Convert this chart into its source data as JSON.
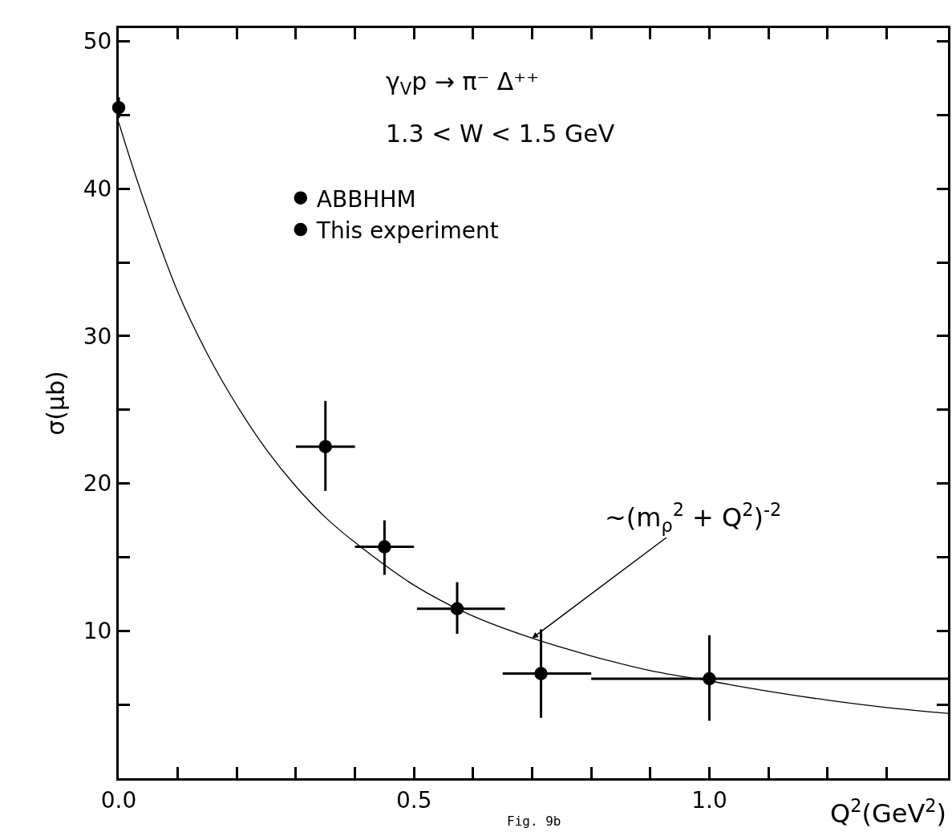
{
  "chart_data": {
    "type": "scatter",
    "title": "γ$_{V}$p → π⁻ Δ⁺⁺",
    "subtitle": "1.3 < W < 1.5 GeV",
    "xlabel": "Q$^{2}$(GeV$^{2}$)",
    "ylabel": "σ(μb)",
    "xlim": [
      0,
      1.404
    ],
    "ylim": [
      0,
      50.9
    ],
    "xticks": [
      {
        "value": 0.0,
        "label": "0.0"
      },
      {
        "value": 0.1,
        "label": null
      },
      {
        "value": 0.2,
        "label": null
      },
      {
        "value": 0.3,
        "label": null
      },
      {
        "value": 0.4,
        "label": null
      },
      {
        "value": 0.5,
        "label": "0.5"
      },
      {
        "value": 0.6,
        "label": null
      },
      {
        "value": 0.7,
        "label": null
      },
      {
        "value": 0.8,
        "label": null
      },
      {
        "value": 0.9,
        "label": null
      },
      {
        "value": 1.0,
        "label": "1.0"
      },
      {
        "value": 1.1,
        "label": null
      },
      {
        "value": 1.2,
        "label": null
      },
      {
        "value": 1.3,
        "label": null
      }
    ],
    "yticks": [
      {
        "value": 5,
        "label": null
      },
      10,
      {
        "value": 15,
        "label": null
      },
      20,
      {
        "value": 25,
        "label": null
      },
      30,
      {
        "value": 35,
        "label": null
      },
      40,
      {
        "value": 45,
        "label": null
      },
      50
    ],
    "legend": "top left",
    "series": [
      {
        "name": "ABBHHM",
        "color": "#000000",
        "marker": "circle",
        "x": [
          0.0
        ],
        "values": [
          45.5
        ],
        "errors": [
          [
            44.8,
            46.2
          ]
        ]
      },
      {
        "name": "This experiment",
        "color": "#000000",
        "marker": "circle",
        "x": [
          0.35,
          0.45,
          0.573,
          0.715,
          1.0
        ],
        "values": [
          22.5,
          15.7,
          11.5,
          7.1,
          6.75
        ],
        "errors": [
          [
            19.5,
            25.6
          ],
          [
            13.8,
            17.5
          ],
          [
            9.8,
            13.3
          ],
          [
            4.1,
            10.1
          ],
          [
            3.9,
            9.7
          ]
        ],
        "xerrors": [
          [
            0.3,
            0.4
          ],
          [
            0.4,
            0.5
          ],
          [
            0.505,
            0.654
          ],
          [
            0.65,
            0.8
          ],
          [
            0.8,
            1.404
          ]
        ]
      },
      {
        "type": "line",
        "color": "#000000",
        "marker": "none",
        "x": [
          0.0,
          0.036,
          0.1,
          0.15,
          0.2,
          0.25,
          0.3,
          0.35,
          0.4,
          0.5,
          0.6,
          0.7,
          0.8,
          0.9,
          1.0,
          1.1,
          1.2,
          1.3,
          1.404
        ],
        "values": [
          44.5,
          40.0,
          33.0,
          28.8,
          25.3,
          22.3,
          19.8,
          17.7,
          16.0,
          13.1,
          11.0,
          9.5,
          8.3,
          7.3,
          6.6,
          5.9,
          5.3,
          4.8,
          4.4
        ]
      }
    ],
    "annotations": [
      {
        "text": "~(m$_{ρ}$$^{2}$ + Q$^{2}$)$^{-2}$",
        "x": 0.7,
        "y": 9.5
      },
      "Fig. 9b"
    ]
  }
}
